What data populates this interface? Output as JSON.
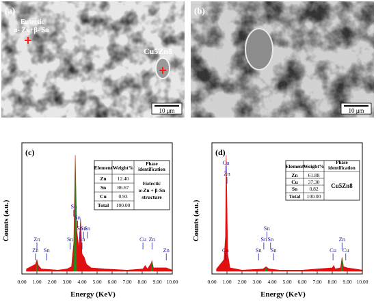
{
  "colors": {
    "spectrum_green": "#1f8c1f",
    "spectrum_red": "#e01010",
    "peak_label_blue": "#1a1aa8",
    "marker_red": "#ff1a1a",
    "sem_dark": "#2e2e2e",
    "sem_light": "#d8d8d8"
  },
  "sem": {
    "a": {
      "label": "(a)",
      "annotation_eutectic_line1": "Eutectic",
      "annotation_eutectic_line2": "α- Zn+β- Sn",
      "annotation_cu5zn8": "Cu5Zn8",
      "scale_bar": "10 μm"
    },
    "b": {
      "label": "(b)",
      "scale_bar": "10 μm"
    }
  },
  "chart_data": [
    {
      "type": "line",
      "panel": "(c)",
      "xlabel": "Energy (KeV)",
      "ylabel": "Counts (a.u.)",
      "xlim": [
        0,
        10
      ],
      "xticks": [
        "0.00",
        "1.00",
        "2.00",
        "3.00",
        "4.00",
        "5.00",
        "6.00",
        "7.00",
        "8.00",
        "9.00",
        "10.00"
      ],
      "series": [
        {
          "values": [
            [
              0.3,
              0.02
            ],
            [
              0.9,
              0.06
            ],
            [
              1.0,
              0.1
            ],
            [
              1.1,
              0.05
            ],
            [
              1.3,
              0.02
            ],
            [
              2.4,
              0.01
            ],
            [
              3.0,
              0.02
            ],
            [
              3.3,
              0.04
            ],
            [
              3.45,
              0.25
            ],
            [
              3.55,
              1.0
            ],
            [
              3.65,
              0.35
            ],
            [
              3.8,
              0.2
            ],
            [
              3.9,
              0.45
            ],
            [
              4.0,
              0.15
            ],
            [
              4.15,
              0.12
            ],
            [
              4.3,
              0.06
            ],
            [
              4.6,
              0.03
            ],
            [
              5.5,
              0.02
            ],
            [
              7.0,
              0.01
            ],
            [
              8.05,
              0.02
            ],
            [
              8.2,
              0.05
            ],
            [
              8.35,
              0.02
            ],
            [
              8.6,
              0.07
            ],
            [
              8.65,
              0.09
            ],
            [
              8.75,
              0.03
            ],
            [
              9.6,
              0.03
            ],
            [
              10.0,
              0.01
            ]
          ]
        }
      ],
      "peak_labels": [
        {
          "text": "Zn",
          "x": 1.0,
          "tier": 2
        },
        {
          "text": "Zn",
          "x": 0.9,
          "tier": 1
        },
        {
          "text": "Sn",
          "x": 1.65,
          "tier": 1
        },
        {
          "text": "Sn",
          "x": 3.2,
          "tier": 2
        },
        {
          "text": "Sn",
          "x": 3.45,
          "tier": 5
        },
        {
          "text": "Sn",
          "x": 3.7,
          "tier": 4
        },
        {
          "text": "Sn",
          "x": 3.85,
          "tier": 3
        },
        {
          "text": "Sn",
          "x": 4.0,
          "tier": 2
        },
        {
          "text": "Sn",
          "x": 4.1,
          "tier": 3
        },
        {
          "text": "Sn",
          "x": 4.35,
          "tier": 3
        },
        {
          "text": "Cu",
          "x": 8.05,
          "tier": 2
        },
        {
          "text": "Zn",
          "x": 8.65,
          "tier": 2
        },
        {
          "text": "Zn",
          "x": 9.6,
          "tier": 1
        }
      ],
      "table": {
        "headers": [
          "Element",
          "Weight%",
          "Phase identification"
        ],
        "rows": [
          [
            "Zn",
            "12.40"
          ],
          [
            "Sn",
            "86.67"
          ],
          [
            "Cu",
            "0.93"
          ],
          [
            "Total",
            "100.00"
          ]
        ],
        "phase_line1": "Eutectic",
        "phase_line2": "α-Zn + β-Sn",
        "phase_line3": "structure"
      }
    },
    {
      "type": "line",
      "panel": "(d)",
      "xlabel": "Energy (KeV)",
      "ylabel": "Counts (a.u.)",
      "xlim": [
        0,
        10
      ],
      "xticks": [
        "0.00",
        "1.00",
        "2.00",
        "3.00",
        "4.00",
        "5.00",
        "6.00",
        "7.00",
        "8.00",
        "9.00",
        "10.00"
      ],
      "series": [
        {
          "values": [
            [
              0.3,
              0.02
            ],
            [
              0.8,
              0.1
            ],
            [
              0.9,
              0.3
            ],
            [
              0.95,
              1.0
            ],
            [
              1.0,
              0.6
            ],
            [
              1.05,
              0.15
            ],
            [
              1.2,
              0.03
            ],
            [
              2.0,
              0.01
            ],
            [
              3.4,
              0.02
            ],
            [
              3.6,
              0.04
            ],
            [
              3.8,
              0.02
            ],
            [
              4.5,
              0.01
            ],
            [
              6.0,
              0.01
            ],
            [
              8.0,
              0.03
            ],
            [
              8.1,
              0.05
            ],
            [
              8.2,
              0.02
            ],
            [
              8.55,
              0.03
            ],
            [
              8.65,
              0.12
            ],
            [
              8.75,
              0.04
            ],
            [
              9.0,
              0.03
            ],
            [
              9.5,
              0.02
            ],
            [
              10.0,
              0.01
            ]
          ]
        }
      ],
      "peak_labels": [
        {
          "text": "Cu",
          "x": 0.93,
          "tier": 9
        },
        {
          "text": "Zn",
          "x": 1.0,
          "tier": 8
        },
        {
          "text": "Cu",
          "x": 0.9,
          "tier": 1
        },
        {
          "text": "Sn",
          "x": 3.1,
          "tier": 1
        },
        {
          "text": "Sn",
          "x": 3.45,
          "tier": 2
        },
        {
          "text": "Sn",
          "x": 3.65,
          "tier": 3
        },
        {
          "text": "Sn",
          "x": 3.9,
          "tier": 2
        },
        {
          "text": "Sn",
          "x": 4.1,
          "tier": 1
        },
        {
          "text": "Cu",
          "x": 8.05,
          "tier": 1
        },
        {
          "text": "Zn",
          "x": 8.65,
          "tier": 2
        },
        {
          "text": "Cu",
          "x": 8.9,
          "tier": 1
        }
      ],
      "table": {
        "headers": [
          "Element",
          "Weight%",
          "Phase identification"
        ],
        "rows": [
          [
            "Zn",
            "61.88"
          ],
          [
            "Cu",
            "37.30"
          ],
          [
            "Sn",
            "0.82"
          ],
          [
            "Total",
            "100.00"
          ]
        ],
        "phase": "Cu5Zn8"
      }
    }
  ]
}
